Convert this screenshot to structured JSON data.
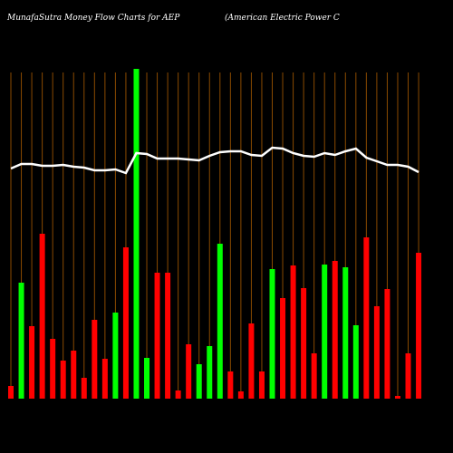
{
  "chart_data": {
    "type": "bar-line",
    "title": "MunafaSutra  Money Flow  Charts for AEP",
    "subtitle": "(American  Electric  Power  C",
    "categories": [
      null,
      null,
      null,
      null,
      null,
      null,
      null,
      null,
      null,
      null,
      null,
      null,
      null,
      null,
      null,
      null,
      null,
      null,
      null,
      null,
      null,
      null,
      null,
      null,
      null,
      null,
      null,
      null,
      null,
      null,
      null,
      null,
      null,
      null,
      null,
      null,
      null,
      null,
      null,
      null
    ],
    "ylim": [
      0,
      365
    ],
    "series": [
      {
        "kind": "bar",
        "colors": [
          "#ff0000",
          "#00ff00",
          "#ff0000",
          "#ff0000",
          "#ff0000",
          "#ff0000",
          "#ff0000",
          "#ff0000",
          "#ff0000",
          "#ff0000",
          "#00ff00",
          "#ff0000",
          "#00ff00",
          "#00ff00",
          "#ff0000",
          "#ff0000",
          "#ff0000",
          "#ff0000",
          "#00ff00",
          "#00ff00",
          "#00ff00",
          "#ff0000",
          "#ff0000",
          "#ff0000",
          "#ff0000",
          "#00ff00",
          "#ff0000",
          "#ff0000",
          "#ff0000",
          "#ff0000",
          "#00ff00",
          "#ff0000",
          "#00ff00",
          "#00ff00",
          "#ff0000",
          "#ff0000",
          "#ff0000",
          "#ff0000",
          "#ff0000",
          "#ff0000"
        ],
        "values": [
          14,
          128,
          80,
          182,
          66,
          42,
          53,
          23,
          87,
          44,
          95,
          167,
          364,
          45,
          139,
          139,
          9,
          60,
          38,
          58,
          171,
          30,
          8,
          83,
          30,
          143,
          111,
          147,
          122,
          50,
          148,
          152,
          145,
          81,
          178,
          102,
          121,
          3,
          50,
          161
        ]
      },
      {
        "kind": "line",
        "color": "#ffffff",
        "values": [
          254,
          259,
          259,
          257,
          257,
          258,
          256,
          255,
          252,
          252,
          253,
          249,
          271,
          270,
          265,
          265,
          265,
          264,
          263,
          268,
          272,
          273,
          273,
          269,
          268,
          277,
          276,
          271,
          268,
          267,
          271,
          269,
          273,
          276,
          266,
          262,
          258,
          258,
          256,
          250
        ]
      }
    ],
    "grid_color": "#8a4a00"
  }
}
